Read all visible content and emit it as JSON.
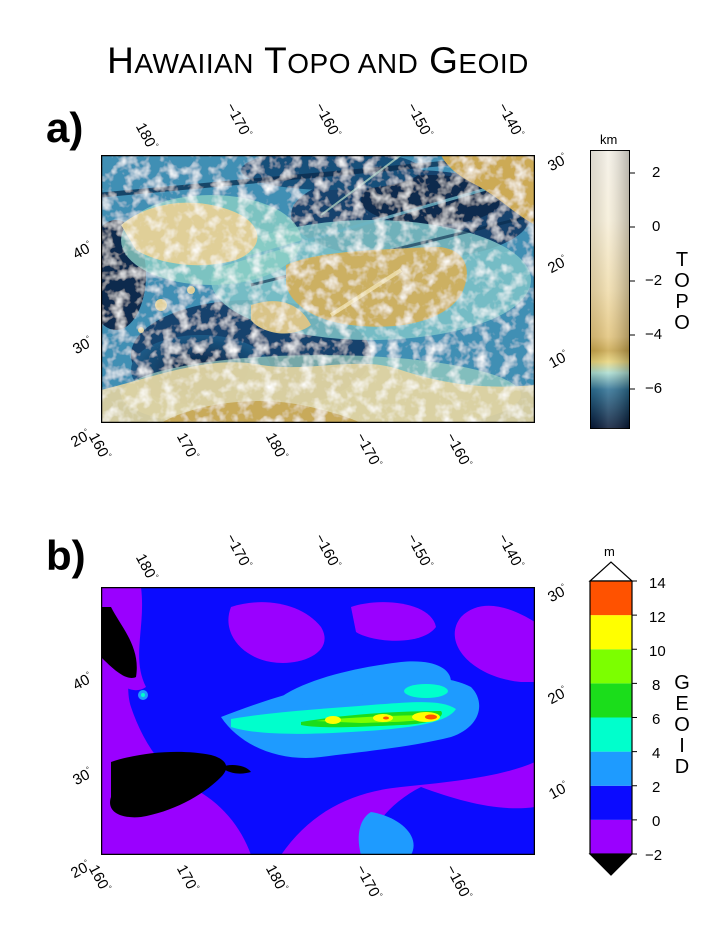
{
  "title": {
    "w1_cap": "H",
    "w1_rest": "AWAIIAN",
    "w2_cap": "T",
    "w2_rest": "OPO AND",
    "w3_cap": "G",
    "w3_rest": "EOID"
  },
  "panels": [
    {
      "label": "a)",
      "bottom_lon_ticks": [
        "160",
        "170",
        "180",
        "−170",
        "−160"
      ],
      "top_lon_ticks": [
        "180",
        "−170",
        "−160",
        "−150",
        "−140"
      ],
      "left_lat_ticks": [
        "40",
        "30",
        "20"
      ],
      "right_lat_ticks": [
        "30",
        "20",
        "10"
      ],
      "colorbar": {
        "unit": "km",
        "title": "TOPO",
        "tick_labels": [
          "2",
          "0",
          "−2",
          "−4",
          "−6"
        ],
        "range": [
          -7.5,
          2.8
        ]
      }
    },
    {
      "label": "b)",
      "bottom_lon_ticks": [
        "160",
        "170",
        "180",
        "−170",
        "−160"
      ],
      "top_lon_ticks": [
        "180",
        "−170",
        "−160",
        "−150",
        "−140"
      ],
      "left_lat_ticks": [
        "40",
        "30",
        "20"
      ],
      "right_lat_ticks": [
        "30",
        "20",
        "10"
      ],
      "colorbar": {
        "unit": "m",
        "title": "GEOID",
        "tick_labels": [
          "14",
          "12",
          "10",
          "8",
          "6",
          "4",
          "2",
          "0",
          "−2"
        ],
        "bins": [
          {
            "from": -2,
            "to": 0,
            "color": "#9a00ff"
          },
          {
            "from": 0,
            "to": 2,
            "color": "#0b0bff"
          },
          {
            "from": 2,
            "to": 4,
            "color": "#1e9bff"
          },
          {
            "from": 4,
            "to": 6,
            "color": "#00ffcc"
          },
          {
            "from": 6,
            "to": 8,
            "color": "#1bdd1b"
          },
          {
            "from": 8,
            "to": 10,
            "color": "#7cff00"
          },
          {
            "from": 10,
            "to": 12,
            "color": "#ffff00"
          },
          {
            "from": 12,
            "to": 14,
            "color": "#ff5200"
          }
        ]
      }
    }
  ]
}
